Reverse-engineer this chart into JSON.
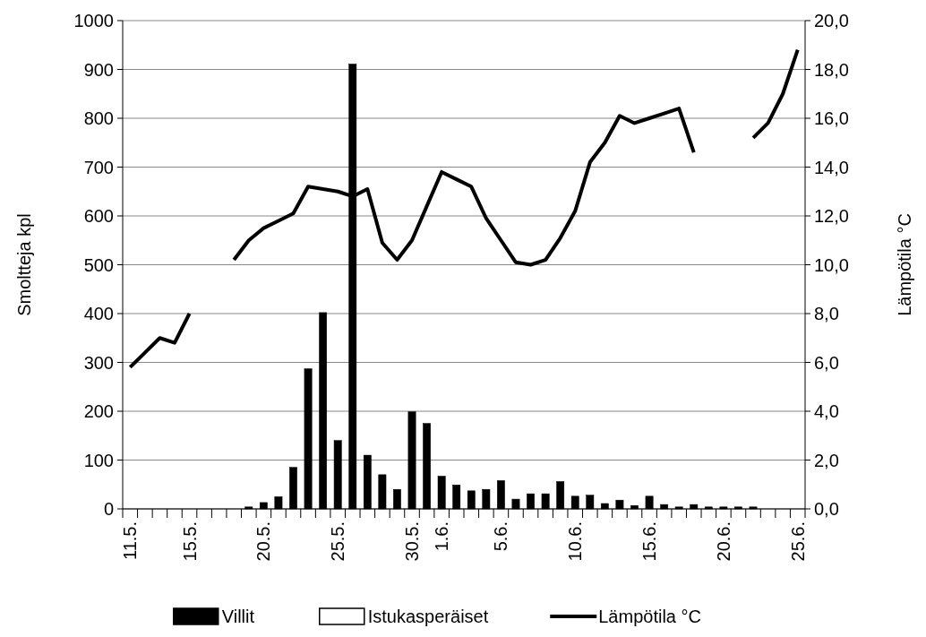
{
  "chart_data": {
    "type": "bar",
    "ylabel": "Smoltteja kpl",
    "y2label": "Lämpötila °C",
    "categories": [
      "11.5.",
      null,
      null,
      null,
      "15.5.",
      null,
      null,
      null,
      null,
      "20.5.",
      null,
      null,
      null,
      null,
      "25.5.",
      null,
      null,
      null,
      null,
      "30.5.",
      null,
      "1.6.",
      null,
      null,
      null,
      "5.6.",
      null,
      null,
      null,
      null,
      "10.6.",
      null,
      null,
      null,
      null,
      "15.6.",
      null,
      null,
      null,
      null,
      "20.6.",
      null,
      null,
      null,
      null,
      "25.6."
    ],
    "series": [
      {
        "name": "Villit",
        "color": "#000000",
        "values": [
          null,
          null,
          null,
          null,
          null,
          null,
          null,
          null,
          4,
          13,
          25,
          85,
          287,
          402,
          140,
          911,
          110,
          70,
          40,
          199,
          175,
          67,
          49,
          37,
          40,
          58,
          20,
          31,
          31,
          56,
          26,
          28,
          11,
          18,
          7,
          26,
          9,
          4,
          9,
          4,
          4,
          4,
          4,
          null,
          null,
          null
        ]
      },
      {
        "name": "Istukasperäiset",
        "color": "#ffffff",
        "values": [
          null,
          null,
          null,
          null,
          null,
          null,
          null,
          null,
          null,
          null,
          null,
          null,
          null,
          null,
          null,
          null,
          null,
          null,
          null,
          null,
          null,
          null,
          null,
          null,
          null,
          null,
          null,
          null,
          null,
          null,
          null,
          null,
          null,
          null,
          null,
          null,
          null,
          null,
          null,
          null,
          null,
          null,
          null,
          null,
          null,
          null
        ]
      },
      {
        "name": "Lämpötila °C",
        "type": "line",
        "axis": "y2",
        "color": "#000000",
        "values": [
          5.8,
          6.4,
          7.0,
          6.8,
          8.0,
          null,
          null,
          10.2,
          11.0,
          11.5,
          11.8,
          12.1,
          13.2,
          13.1,
          13.0,
          12.8,
          13.1,
          10.9,
          10.2,
          11.0,
          12.4,
          13.8,
          13.5,
          13.2,
          11.9,
          11.0,
          10.1,
          10.0,
          10.2,
          11.1,
          12.2,
          14.2,
          15.0,
          16.1,
          15.8,
          16.0,
          16.2,
          16.4,
          14.6,
          null,
          null,
          null,
          15.2,
          15.8,
          17.0,
          18.8
        ]
      }
    ],
    "stacked": true,
    "ylim": [
      0,
      1000
    ],
    "yticks": [
      0,
      100,
      200,
      300,
      400,
      500,
      600,
      700,
      800,
      900,
      1000
    ],
    "y2lim": [
      0,
      20
    ],
    "y2ticks": [
      {
        "value": 0,
        "label": "0,0"
      },
      {
        "value": 2,
        "label": "2,0"
      },
      {
        "value": 4,
        "label": "4,0"
      },
      {
        "value": 6,
        "label": "6,0"
      },
      {
        "value": 8,
        "label": "8,0"
      },
      {
        "value": 10,
        "label": "10,0"
      },
      {
        "value": 12,
        "label": "12,0"
      },
      {
        "value": 14,
        "label": "14,0"
      },
      {
        "value": 16,
        "label": "16,0"
      },
      {
        "value": 18,
        "label": "18,0"
      },
      {
        "value": 20,
        "label": "20,0"
      }
    ],
    "grid": "y",
    "legend": "bottom",
    "marker": "none",
    "line_style": "solid"
  }
}
